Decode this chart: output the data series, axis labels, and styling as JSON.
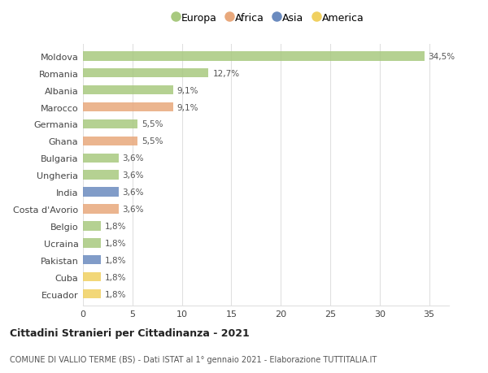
{
  "countries": [
    "Moldova",
    "Romania",
    "Albania",
    "Marocco",
    "Germania",
    "Ghana",
    "Bulgaria",
    "Ungheria",
    "India",
    "Costa d'Avorio",
    "Belgio",
    "Ucraina",
    "Pakistan",
    "Cuba",
    "Ecuador"
  ],
  "values": [
    34.5,
    12.7,
    9.1,
    9.1,
    5.5,
    5.5,
    3.6,
    3.6,
    3.6,
    3.6,
    1.8,
    1.8,
    1.8,
    1.8,
    1.8
  ],
  "labels": [
    "34,5%",
    "12,7%",
    "9,1%",
    "9,1%",
    "5,5%",
    "5,5%",
    "3,6%",
    "3,6%",
    "3,6%",
    "3,6%",
    "1,8%",
    "1,8%",
    "1,8%",
    "1,8%",
    "1,8%"
  ],
  "continents": [
    "Europa",
    "Europa",
    "Europa",
    "Africa",
    "Europa",
    "Africa",
    "Europa",
    "Europa",
    "Asia",
    "Africa",
    "Europa",
    "Europa",
    "Asia",
    "America",
    "America"
  ],
  "colors": {
    "Europa": "#a8c97f",
    "Africa": "#e8a87c",
    "Asia": "#6b8bbf",
    "America": "#f0d060"
  },
  "xlim": [
    0,
    37
  ],
  "xticks": [
    0,
    5,
    10,
    15,
    20,
    25,
    30,
    35
  ],
  "background_color": "#ffffff",
  "grid_color": "#e0e0e0",
  "title": "Cittadini Stranieri per Cittadinanza - 2021",
  "subtitle": "COMUNE DI VALLIO TERME (BS) - Dati ISTAT al 1° gennaio 2021 - Elaborazione TUTTITALIA.IT",
  "bar_height": 0.55,
  "legend_order": [
    "Europa",
    "Africa",
    "Asia",
    "America"
  ]
}
